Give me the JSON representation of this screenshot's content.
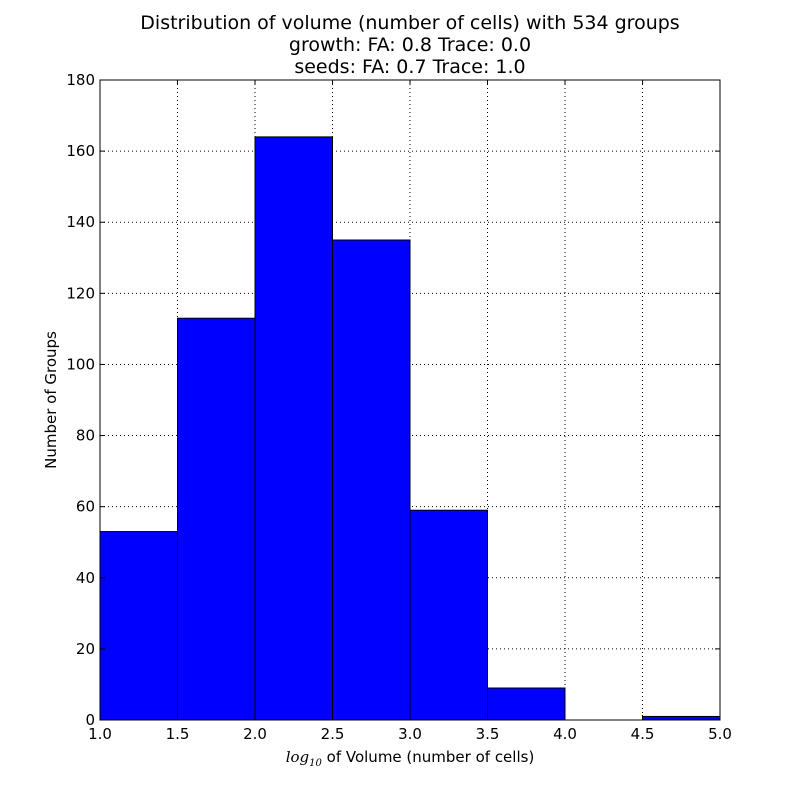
{
  "chart_data": {
    "type": "bar",
    "title_lines": [
      "Distribution of volume (number of cells) with 534 groups",
      "growth: FA: 0.8 Trace: 0.0",
      "seeds: FA: 0.7 Trace: 1.0"
    ],
    "xlabel": {
      "math_base": "log",
      "math_sub": "10",
      "text": " of Volume (number of cells)"
    },
    "ylabel": "Number of Groups",
    "xlim": [
      1.0,
      5.0
    ],
    "ylim": [
      0,
      180
    ],
    "x_ticks": [
      "1.0",
      "1.5",
      "2.0",
      "2.5",
      "3.0",
      "3.5",
      "4.0",
      "4.5",
      "5.0"
    ],
    "y_ticks": [
      "0",
      "20",
      "40",
      "60",
      "80",
      "100",
      "120",
      "140",
      "160",
      "180"
    ],
    "grid": true,
    "bar_color": "#0000ff",
    "bins": [
      {
        "x0": 1.0,
        "x1": 1.5,
        "value": 53
      },
      {
        "x0": 1.5,
        "x1": 2.0,
        "value": 113
      },
      {
        "x0": 2.0,
        "x1": 2.5,
        "value": 164
      },
      {
        "x0": 2.5,
        "x1": 3.0,
        "value": 135
      },
      {
        "x0": 3.0,
        "x1": 3.5,
        "value": 59
      },
      {
        "x0": 3.5,
        "x1": 4.0,
        "value": 9
      },
      {
        "x0": 4.0,
        "x1": 4.5,
        "value": 0
      },
      {
        "x0": 4.5,
        "x1": 5.0,
        "value": 1
      }
    ]
  }
}
